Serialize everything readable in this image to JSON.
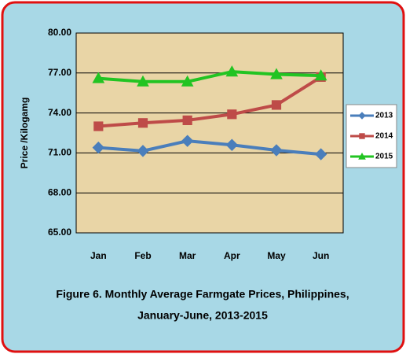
{
  "chart_data": {
    "type": "line",
    "caption": [
      "Figure 6.  Monthly Average Farmgate Prices, Philippines,",
      "January-June, 2013-2015"
    ],
    "y_label": "Price /Kilogamg",
    "categories": [
      "Jan",
      "Feb",
      "Mar",
      "Apr",
      "May",
      "Jun"
    ],
    "series": [
      {
        "name": "2013",
        "color": "#4a7ebb",
        "marker": "diamond",
        "values": [
          71.4,
          71.15,
          71.9,
          71.6,
          71.2,
          70.9
        ]
      },
      {
        "name": "2014",
        "color": "#be4b48",
        "marker": "square",
        "values": [
          73.0,
          73.25,
          73.45,
          73.9,
          74.6,
          76.7
        ]
      },
      {
        "name": "2015",
        "color": "#22c422",
        "marker": "triangle",
        "values": [
          76.6,
          76.35,
          76.35,
          77.1,
          76.9,
          76.8
        ]
      }
    ],
    "ylim": [
      65,
      80
    ],
    "yticks": [
      {
        "value": 65,
        "label": "65.00"
      },
      {
        "value": 68,
        "label": "68.00"
      },
      {
        "value": 71,
        "label": "71.00"
      },
      {
        "value": 74,
        "label": "74.00"
      },
      {
        "value": 77,
        "label": "77.00"
      },
      {
        "value": 80,
        "label": "80.00"
      }
    ],
    "grid": true,
    "legend": "right"
  }
}
